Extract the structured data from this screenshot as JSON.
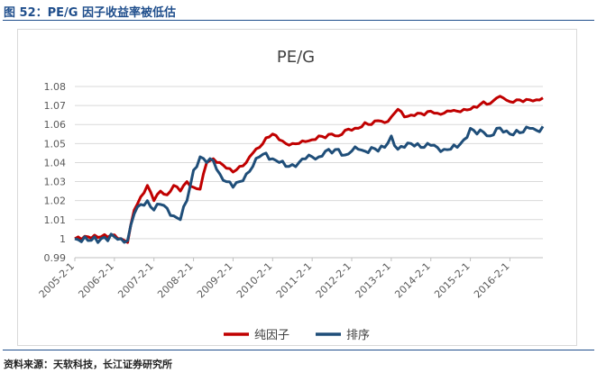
{
  "figure_title": "图 52：PE/G 因子收益率被低估",
  "source": "资料来源：天软科技，长江证券研究所",
  "colors": {
    "series1": "#c00000",
    "series2": "#1f4e79",
    "grid": "#d9d9d9",
    "axis_text": "#595959"
  },
  "chart_data": {
    "type": "line",
    "title": "PE/G",
    "xlabel": "",
    "ylabel": "",
    "ylim": [
      0.99,
      1.08
    ],
    "yticks": [
      0.99,
      1,
      1.01,
      1.02,
      1.03,
      1.04,
      1.05,
      1.06,
      1.07,
      1.08
    ],
    "ytick_labels": [
      "0.99",
      "1",
      "1.01",
      "1.02",
      "1.03",
      "1.04",
      "1.05",
      "1.06",
      "1.07",
      "1.08"
    ],
    "xticks": [
      "2005-2-1",
      "2006-2-1",
      "2007-2-1",
      "2008-2-1",
      "2009-2-1",
      "2010-2-1",
      "2011-2-1",
      "2012-2-1",
      "2013-2-1",
      "2014-2-1",
      "2015-2-1",
      "2016-2-1"
    ],
    "grid": true,
    "legend_position": "bottom",
    "x": [
      "2005-02",
      "2005-06",
      "2005-10",
      "2006-02",
      "2006-04",
      "2006-06",
      "2006-08",
      "2006-10",
      "2006-12",
      "2007-02",
      "2007-04",
      "2007-06",
      "2007-08",
      "2007-10",
      "2007-12",
      "2008-02",
      "2008-04",
      "2008-06",
      "2008-08",
      "2008-10",
      "2008-12",
      "2009-02",
      "2009-04",
      "2009-06",
      "2009-08",
      "2009-10",
      "2009-12",
      "2010-02",
      "2010-04",
      "2010-06",
      "2010-08",
      "2010-10",
      "2010-12",
      "2011-02",
      "2011-04",
      "2011-06",
      "2011-08",
      "2011-10",
      "2011-12",
      "2012-02",
      "2012-04",
      "2012-06",
      "2012-08",
      "2012-10",
      "2012-12",
      "2013-02",
      "2013-04",
      "2013-06",
      "2013-08",
      "2013-10",
      "2013-12",
      "2014-02",
      "2014-04",
      "2014-06",
      "2014-08",
      "2014-10",
      "2014-12",
      "2015-02",
      "2015-04",
      "2015-06",
      "2015-08",
      "2015-10",
      "2015-12",
      "2016-02",
      "2016-04",
      "2016-06",
      "2016-08",
      "2016-10",
      "2016-12"
    ],
    "series": [
      {
        "name": "纯因子",
        "values": [
          1.0,
          1.001,
          1.001,
          1.002,
          1.0,
          0.998,
          1.015,
          1.022,
          1.028,
          1.02,
          1.025,
          1.023,
          1.028,
          1.025,
          1.03,
          1.027,
          1.026,
          1.04,
          1.042,
          1.04,
          1.037,
          1.035,
          1.038,
          1.04,
          1.045,
          1.048,
          1.053,
          1.055,
          1.052,
          1.05,
          1.05,
          1.05,
          1.051,
          1.052,
          1.054,
          1.053,
          1.055,
          1.054,
          1.057,
          1.057,
          1.058,
          1.061,
          1.06,
          1.062,
          1.061,
          1.064,
          1.068,
          1.064,
          1.065,
          1.066,
          1.065,
          1.067,
          1.066,
          1.066,
          1.067,
          1.067,
          1.068,
          1.068,
          1.069,
          1.072,
          1.071,
          1.074,
          1.074,
          1.072,
          1.073,
          1.072,
          1.073,
          1.073,
          1.074
        ]
      },
      {
        "name": "排序",
        "values": [
          1.0,
          0.999,
          1.0,
          1.001,
          1.0,
          0.999,
          1.013,
          1.018,
          1.02,
          1.015,
          1.018,
          1.016,
          1.012,
          1.01,
          1.02,
          1.036,
          1.043,
          1.04,
          1.041,
          1.034,
          1.03,
          1.027,
          1.03,
          1.034,
          1.038,
          1.043,
          1.045,
          1.042,
          1.04,
          1.038,
          1.039,
          1.04,
          1.042,
          1.043,
          1.043,
          1.046,
          1.045,
          1.047,
          1.044,
          1.046,
          1.047,
          1.046,
          1.048,
          1.046,
          1.048,
          1.054,
          1.047,
          1.048,
          1.05,
          1.05,
          1.048,
          1.049,
          1.048,
          1.047,
          1.047,
          1.048,
          1.052,
          1.058,
          1.055,
          1.056,
          1.054,
          1.058,
          1.056,
          1.055,
          1.057,
          1.056,
          1.058,
          1.057,
          1.059
        ]
      }
    ]
  }
}
